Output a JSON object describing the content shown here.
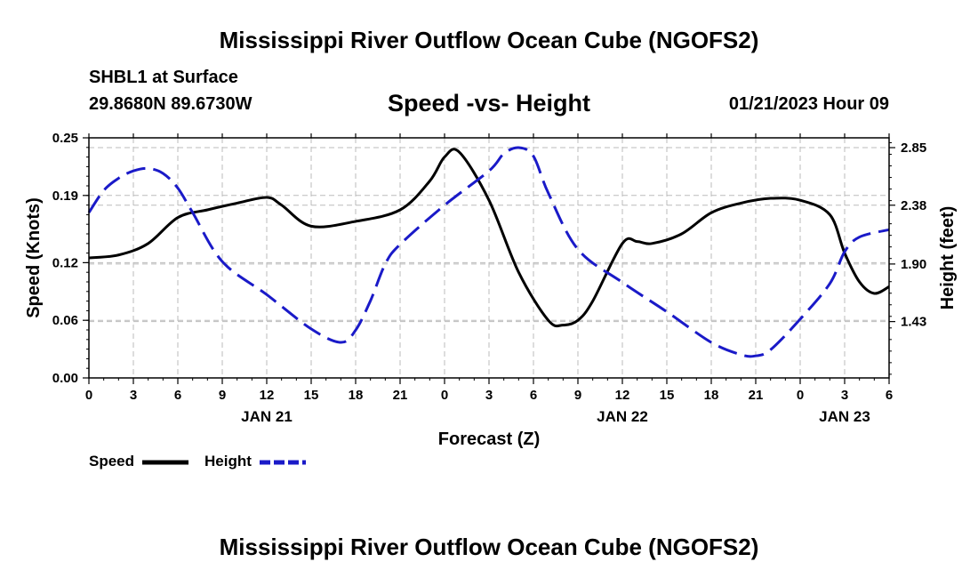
{
  "header": {
    "title": "Mississippi River Outflow Ocean Cube (NGOFS2)",
    "station": "SHBL1 at Surface",
    "coords": "29.8680N  89.6730W",
    "subtitle": "Speed -vs- Height",
    "datetime": "01/21/2023 Hour 09"
  },
  "footer": {
    "title": "Mississippi River Outflow Ocean Cube (NGOFS2)"
  },
  "legend": {
    "speed_label": "Speed",
    "height_label": "Height"
  },
  "colors": {
    "speed": "#000000",
    "height": "#1a1ac8",
    "grid": "#bbbbbb"
  },
  "chart_data": {
    "type": "line",
    "title": "Speed -vs- Height",
    "xlabel": "Forecast (Z)",
    "ylabel": "Speed (Knots)",
    "y2label": "Height (feet)",
    "xlim": [
      0,
      54
    ],
    "ylim": [
      0.0,
      0.25
    ],
    "y2lim": [
      0.97,
      2.93
    ],
    "x_ticks": [
      0,
      3,
      6,
      9,
      12,
      15,
      18,
      21,
      24,
      27,
      30,
      33,
      36,
      39,
      42,
      45,
      48,
      51,
      54
    ],
    "x_tick_labels": [
      "0",
      "3",
      "6",
      "9",
      "12",
      "15",
      "18",
      "21",
      "0",
      "3",
      "6",
      "9",
      "12",
      "15",
      "18",
      "21",
      "0",
      "3",
      "6"
    ],
    "date_labels": [
      {
        "x": 12,
        "label": "JAN 21"
      },
      {
        "x": 36,
        "label": "JAN 22"
      },
      {
        "x": 51,
        "label": "JAN 23"
      }
    ],
    "y_ticks": [
      0.0,
      0.06,
      0.12,
      0.19,
      0.25
    ],
    "y_tick_labels": [
      "0.00",
      "0.06",
      "0.12",
      "0.19",
      "0.25"
    ],
    "y2_ticks": [
      1.43,
      1.9,
      2.38,
      2.85
    ],
    "y2_tick_labels": [
      "1.43",
      "1.90",
      "2.38",
      "2.85"
    ],
    "series": [
      {
        "name": "Speed",
        "axis": "left",
        "style": "solid",
        "x": [
          0,
          2,
          4,
          6,
          8,
          10,
          12,
          13,
          15,
          18,
          21,
          23,
          24,
          25,
          27,
          29,
          31,
          32,
          33,
          34,
          36,
          37,
          38,
          40,
          42,
          44,
          46,
          48,
          50,
          51,
          52,
          53,
          54
        ],
        "values": [
          0.125,
          0.128,
          0.14,
          0.167,
          0.175,
          0.182,
          0.188,
          0.18,
          0.158,
          0.163,
          0.175,
          0.205,
          0.23,
          0.235,
          0.185,
          0.11,
          0.06,
          0.055,
          0.06,
          0.08,
          0.14,
          0.142,
          0.14,
          0.15,
          0.172,
          0.182,
          0.187,
          0.185,
          0.17,
          0.13,
          0.1,
          0.088,
          0.095
        ]
      },
      {
        "name": "Height",
        "axis": "right",
        "style": "dashed",
        "x": [
          0,
          1,
          2,
          3,
          4,
          5,
          6,
          7,
          9,
          12,
          15,
          17,
          18,
          19,
          20,
          21,
          24,
          27,
          28,
          29,
          30,
          31,
          33,
          36,
          39,
          42,
          44,
          45,
          46,
          48,
          50,
          51,
          52,
          54
        ],
        "values": [
          2.32,
          2.5,
          2.6,
          2.66,
          2.68,
          2.64,
          2.52,
          2.32,
          1.92,
          1.65,
          1.37,
          1.26,
          1.36,
          1.6,
          1.9,
          2.06,
          2.38,
          2.66,
          2.8,
          2.85,
          2.78,
          2.48,
          2.02,
          1.75,
          1.51,
          1.26,
          1.16,
          1.15,
          1.2,
          1.45,
          1.74,
          2.0,
          2.12,
          2.18
        ]
      }
    ]
  }
}
